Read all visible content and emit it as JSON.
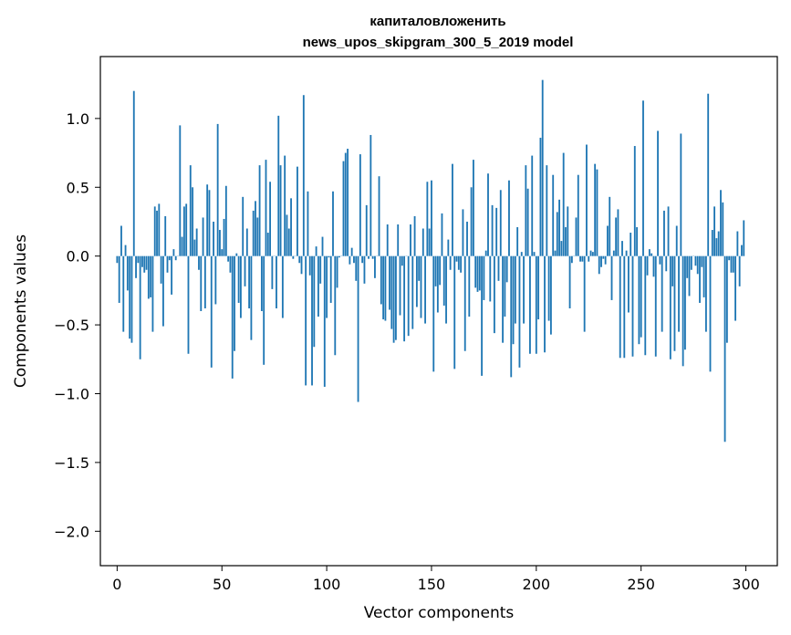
{
  "chart_data": {
    "type": "bar",
    "title": "капиталовложенить\nnews_upos_skipgram_300_5_2019 model",
    "xlabel": "Vector components",
    "ylabel": "Components values",
    "xlim": [
      -8,
      315
    ],
    "ylim": [
      -2.25,
      1.45
    ],
    "xticks": [
      0,
      50,
      100,
      150,
      200,
      250,
      300
    ],
    "yticks": [
      -2.0,
      -1.5,
      -1.0,
      -0.5,
      0.0,
      0.5,
      1.0
    ],
    "ytick_labels": [
      "−2.0",
      "−1.5",
      "−1.0",
      "−0.5",
      "0.0",
      "0.5",
      "1.0"
    ],
    "bar_color": "#1f77b4",
    "grid": false,
    "legend": "none",
    "values": [
      -0.05,
      -0.34,
      0.22,
      -0.55,
      0.08,
      -0.25,
      -0.6,
      -0.63,
      1.2,
      -0.16,
      -0.05,
      -0.75,
      -0.08,
      -0.12,
      -0.1,
      -0.31,
      -0.3,
      -0.55,
      0.36,
      0.33,
      0.38,
      -0.2,
      -0.51,
      0.29,
      -0.12,
      -0.03,
      -0.28,
      0.05,
      -0.03,
      0.0,
      0.95,
      0.14,
      0.36,
      0.38,
      -0.71,
      0.66,
      0.5,
      0.12,
      0.2,
      -0.1,
      -0.4,
      0.28,
      -0.38,
      0.52,
      0.48,
      -0.81,
      0.25,
      -0.35,
      0.96,
      0.19,
      0.05,
      0.27,
      0.51,
      -0.04,
      -0.12,
      -0.89,
      -0.69,
      0.02,
      -0.34,
      -0.45,
      0.43,
      -0.22,
      0.2,
      -0.38,
      -0.61,
      0.33,
      0.4,
      0.28,
      0.66,
      -0.4,
      -0.79,
      0.7,
      0.17,
      0.54,
      -0.24,
      0.0,
      -0.38,
      1.02,
      0.66,
      -0.45,
      0.73,
      0.3,
      0.2,
      0.42,
      -0.02,
      0.0,
      0.65,
      -0.05,
      -0.13,
      1.17,
      -0.94,
      0.47,
      -0.14,
      -0.94,
      -0.66,
      0.07,
      -0.44,
      -0.2,
      0.14,
      -0.95,
      -0.45,
      -0.01,
      -0.34,
      0.47,
      -0.72,
      -0.23,
      -0.01,
      0.0,
      0.69,
      0.75,
      0.78,
      -0.06,
      0.06,
      -0.05,
      -0.18,
      -1.06,
      0.74,
      -0.05,
      -0.2,
      0.37,
      -0.02,
      0.88,
      -0.02,
      -0.16,
      0.0,
      0.58,
      -0.35,
      -0.46,
      -0.47,
      0.23,
      -0.39,
      -0.53,
      -0.63,
      -0.61,
      0.23,
      -0.43,
      -0.07,
      -0.62,
      0.0,
      -0.58,
      0.23,
      -0.53,
      0.29,
      -0.37,
      -0.18,
      -0.45,
      0.2,
      -0.49,
      0.54,
      0.2,
      0.55,
      -0.84,
      -0.22,
      -0.41,
      -0.21,
      0.31,
      -0.36,
      -0.49,
      0.12,
      -0.1,
      0.67,
      -0.82,
      -0.04,
      -0.1,
      -0.12,
      0.34,
      -0.69,
      0.25,
      -0.44,
      0.5,
      0.7,
      -0.23,
      -0.26,
      -0.25,
      -0.87,
      -0.32,
      0.04,
      0.6,
      -0.33,
      0.37,
      -0.56,
      0.35,
      -0.18,
      0.48,
      -0.63,
      -0.44,
      -0.19,
      0.55,
      -0.88,
      -0.64,
      -0.49,
      0.21,
      -0.81,
      0.03,
      -0.49,
      0.66,
      0.49,
      -0.71,
      0.73,
      0.03,
      -0.71,
      -0.46,
      0.86,
      1.28,
      -0.7,
      0.66,
      -0.47,
      -0.57,
      0.59,
      0.04,
      0.32,
      0.41,
      0.11,
      0.75,
      0.21,
      0.36,
      -0.38,
      -0.05,
      0.0,
      0.28,
      0.59,
      -0.04,
      -0.04,
      -0.55,
      0.81,
      -0.04,
      0.04,
      0.03,
      0.67,
      0.63,
      -0.13,
      -0.08,
      -0.02,
      -0.06,
      0.22,
      0.43,
      -0.32,
      0.04,
      0.28,
      0.34,
      -0.74,
      0.11,
      -0.74,
      0.04,
      -0.41,
      0.17,
      -0.73,
      0.8,
      0.21,
      -0.64,
      -0.59,
      1.13,
      -0.72,
      -0.14,
      0.05,
      0.02,
      -0.15,
      -0.73,
      0.91,
      -0.06,
      -0.55,
      0.33,
      -0.11,
      0.36,
      -0.75,
      -0.22,
      -0.69,
      0.22,
      -0.55,
      0.89,
      -0.8,
      -0.68,
      -0.16,
      -0.29,
      -0.1,
      0.0,
      -0.07,
      -0.13,
      -0.34,
      -0.08,
      -0.3,
      -0.55,
      1.18,
      -0.84,
      0.19,
      0.36,
      0.13,
      0.18,
      0.48,
      0.39,
      -1.35,
      -0.63,
      -0.03,
      -0.12,
      -0.12,
      -0.47,
      0.18,
      -0.22,
      0.08,
      0.26
    ],
    "note_values": "values listed in index order 0..299"
  }
}
